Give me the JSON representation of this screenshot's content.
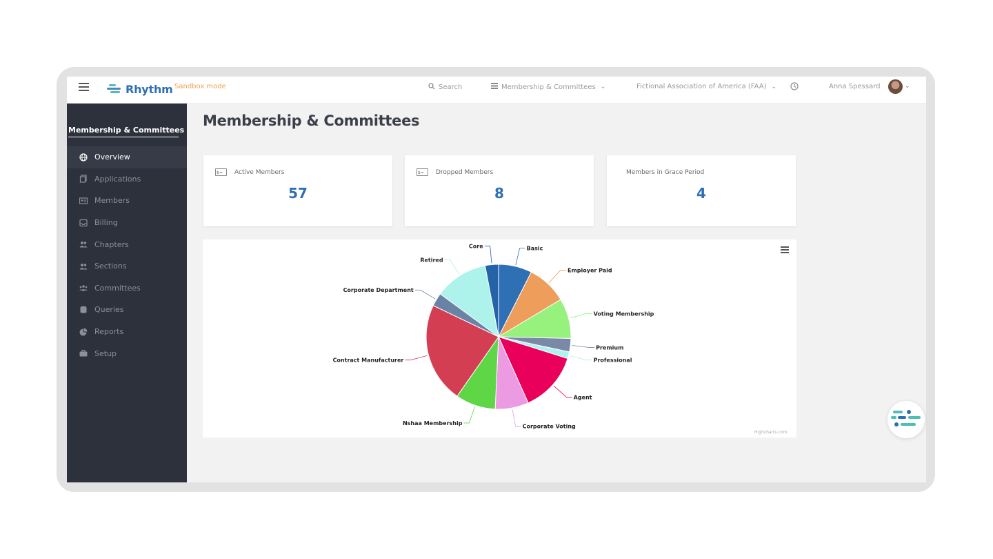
{
  "app": {
    "name": "Rhythm",
    "mode": "Sandbox mode"
  },
  "topbar": {
    "search_label": "Search",
    "module": "Membership & Committees",
    "org": "Fictional Association of America (FAA)",
    "user": "Anna Spessard"
  },
  "sidebar": {
    "title": "Membership & Committees",
    "items": [
      {
        "label": "Overview",
        "icon": "globe-icon"
      },
      {
        "label": "Applications",
        "icon": "copy-icon"
      },
      {
        "label": "Members",
        "icon": "id-card-icon"
      },
      {
        "label": "Billing",
        "icon": "inbox-icon"
      },
      {
        "label": "Chapters",
        "icon": "users-icon"
      },
      {
        "label": "Sections",
        "icon": "users-icon"
      },
      {
        "label": "Committees",
        "icon": "group-icon"
      },
      {
        "label": "Queries",
        "icon": "database-icon"
      },
      {
        "label": "Reports",
        "icon": "pie-chart-icon"
      },
      {
        "label": "Setup",
        "icon": "toolbox-icon"
      }
    ]
  },
  "main": {
    "title": "Membership & Committees",
    "cards": [
      {
        "label": "Active Members",
        "value": "57"
      },
      {
        "label": "Dropped Members",
        "value": "8"
      },
      {
        "label": "Members in Grace Period",
        "value": "4"
      }
    ],
    "chart_credit": "Highcharts.com"
  },
  "colors": {
    "accent": "#2f6fb4",
    "sandbox": "#f0a050",
    "sidebar": "#2c313c"
  },
  "chart_data": {
    "type": "pie",
    "slices": [
      {
        "label": "Basic",
        "value": 5,
        "color": "#2f6fb4"
      },
      {
        "label": "Employer Paid",
        "value": 6,
        "color": "#ef9d5a"
      },
      {
        "label": "Voting Membership",
        "value": 6,
        "color": "#96f27d"
      },
      {
        "label": "Premium",
        "value": 2,
        "color": "#7a89a8"
      },
      {
        "label": "Professional",
        "value": 1,
        "color": "#aef2f0"
      },
      {
        "label": "Agent",
        "value": 9,
        "color": "#e8005a"
      },
      {
        "label": "Corporate Voting",
        "value": 5,
        "color": "#ec9be3"
      },
      {
        "label": "Nshaa Membership",
        "value": 6,
        "color": "#5fd646"
      },
      {
        "label": "Contract Manufacturer",
        "value": 15,
        "color": "#d33e52"
      },
      {
        "label": "Corporate Department",
        "value": 2,
        "color": "#6a83a4"
      },
      {
        "label": "Retired",
        "value": 8,
        "color": "#aef2ec"
      },
      {
        "label": "Core",
        "value": 2,
        "color": "#2463a8"
      }
    ]
  }
}
